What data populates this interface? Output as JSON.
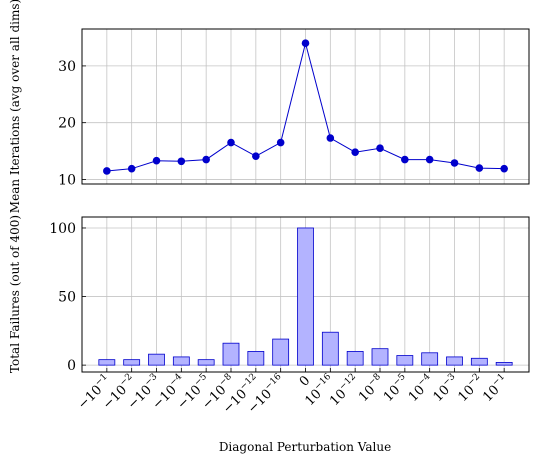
{
  "chart_data": [
    {
      "type": "line",
      "name": "mean-iterations",
      "ylabel": "Mean Iterations (avg over all dims)",
      "xlabel": "",
      "categories": [
        "-10^-1",
        "-10^-2",
        "-10^-3",
        "-10^-4",
        "-10^-5",
        "-10^-8",
        "-10^-12",
        "-10^-16",
        "0",
        "10^-16",
        "10^-12",
        "10^-8",
        "10^-5",
        "10^-4",
        "10^-3",
        "10^-2",
        "10^-1"
      ],
      "values": [
        11.5,
        11.9,
        13.3,
        13.2,
        13.5,
        16.5,
        14.1,
        16.5,
        34.0,
        17.3,
        14.8,
        15.5,
        13.5,
        13.5,
        12.9,
        12.0,
        11.9
      ],
      "ylim": [
        9.2,
        36.5
      ],
      "yticks": [
        10,
        20,
        30
      ],
      "ytick_labels": [
        "10",
        "20",
        "30"
      ],
      "grid": true,
      "color": "#0000cc"
    },
    {
      "type": "bar",
      "name": "total-failures",
      "ylabel": "Total Failures (out of 400)",
      "xlabel": "Diagonal Perturbation Value",
      "categories": [
        "-10^-1",
        "-10^-2",
        "-10^-3",
        "-10^-4",
        "-10^-5",
        "-10^-8",
        "-10^-12",
        "-10^-16",
        "0",
        "10^-16",
        "10^-12",
        "10^-8",
        "10^-5",
        "10^-4",
        "10^-3",
        "10^-2",
        "10^-1"
      ],
      "values": [
        4,
        4,
        8,
        6,
        4,
        16,
        10,
        19,
        100,
        24,
        10,
        12,
        7,
        9,
        6,
        5,
        2
      ],
      "ylim": [
        -5,
        108
      ],
      "yticks": [
        0,
        50,
        100
      ],
      "ytick_labels": [
        "0",
        "50",
        "100"
      ],
      "grid": true,
      "fill": "#b3b3ff",
      "stroke": "#0000cc"
    }
  ],
  "x_tick_labels": [
    {
      "base": "−10",
      "exp": "−1"
    },
    {
      "base": "−10",
      "exp": "−2"
    },
    {
      "base": "−10",
      "exp": "−3"
    },
    {
      "base": "−10",
      "exp": "−4"
    },
    {
      "base": "−10",
      "exp": "−5"
    },
    {
      "base": "−10",
      "exp": "−8"
    },
    {
      "base": "−10",
      "exp": "−12"
    },
    {
      "base": "−10",
      "exp": "−16"
    },
    {
      "base": "0",
      "exp": ""
    },
    {
      "base": "10",
      "exp": "−16"
    },
    {
      "base": "10",
      "exp": "−12"
    },
    {
      "base": "10",
      "exp": "−8"
    },
    {
      "base": "10",
      "exp": "−5"
    },
    {
      "base": "10",
      "exp": "−4"
    },
    {
      "base": "10",
      "exp": "−3"
    },
    {
      "base": "10",
      "exp": "−2"
    },
    {
      "base": "10",
      "exp": "−1"
    }
  ]
}
